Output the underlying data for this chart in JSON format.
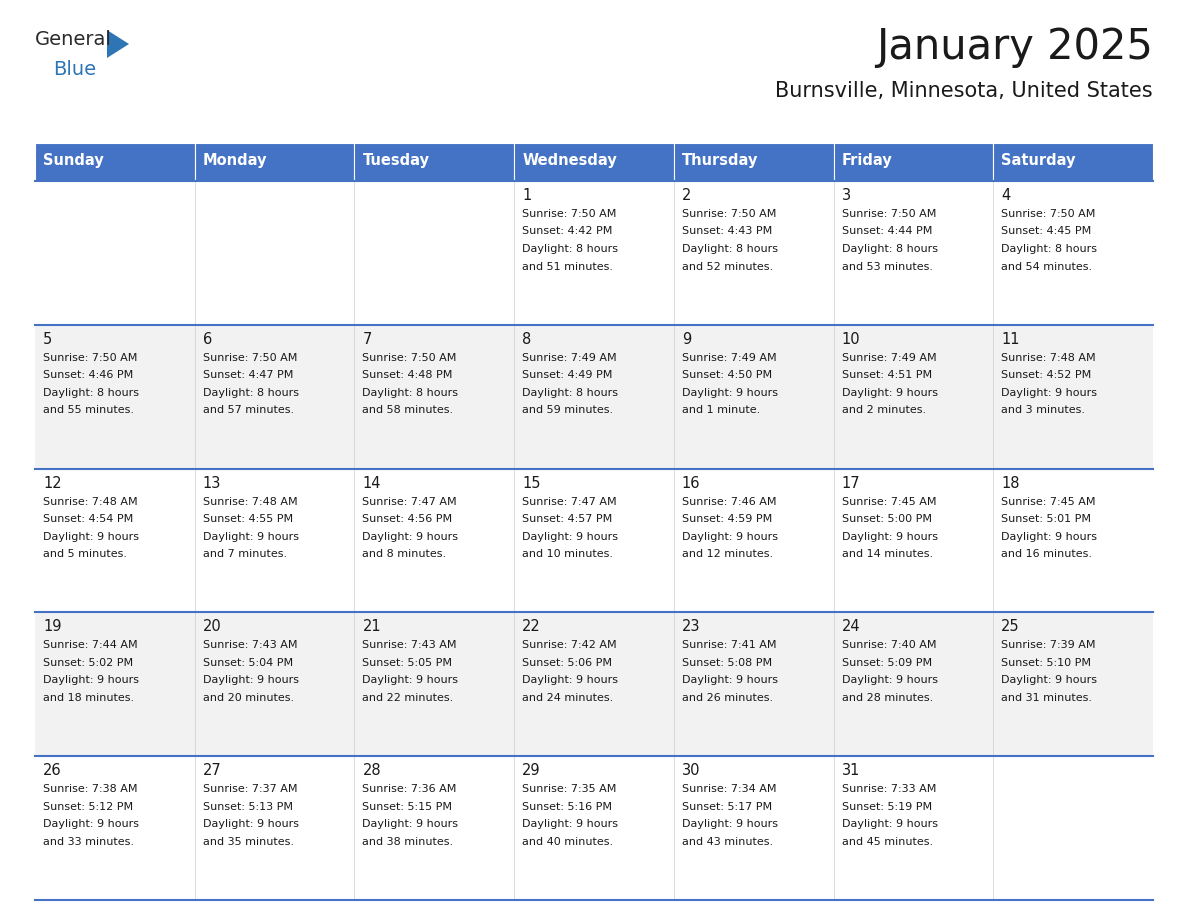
{
  "title": "January 2025",
  "subtitle": "Burnsville, Minnesota, United States",
  "header_bg": "#4472C4",
  "header_text_color": "#FFFFFF",
  "row_bg_even": "#FFFFFF",
  "row_bg_odd": "#F2F2F2",
  "border_color": "#4472C4",
  "border_color_light": "#9DC3E6",
  "day_headers": [
    "Sunday",
    "Monday",
    "Tuesday",
    "Wednesday",
    "Thursday",
    "Friday",
    "Saturday"
  ],
  "weeks": [
    [
      {
        "day": "",
        "sunrise": "",
        "sunset": "",
        "daylight": ""
      },
      {
        "day": "",
        "sunrise": "",
        "sunset": "",
        "daylight": ""
      },
      {
        "day": "",
        "sunrise": "",
        "sunset": "",
        "daylight": ""
      },
      {
        "day": "1",
        "sunrise": "Sunrise: 7:50 AM",
        "sunset": "Sunset: 4:42 PM",
        "daylight": "Daylight: 8 hours\nand 51 minutes."
      },
      {
        "day": "2",
        "sunrise": "Sunrise: 7:50 AM",
        "sunset": "Sunset: 4:43 PM",
        "daylight": "Daylight: 8 hours\nand 52 minutes."
      },
      {
        "day": "3",
        "sunrise": "Sunrise: 7:50 AM",
        "sunset": "Sunset: 4:44 PM",
        "daylight": "Daylight: 8 hours\nand 53 minutes."
      },
      {
        "day": "4",
        "sunrise": "Sunrise: 7:50 AM",
        "sunset": "Sunset: 4:45 PM",
        "daylight": "Daylight: 8 hours\nand 54 minutes."
      }
    ],
    [
      {
        "day": "5",
        "sunrise": "Sunrise: 7:50 AM",
        "sunset": "Sunset: 4:46 PM",
        "daylight": "Daylight: 8 hours\nand 55 minutes."
      },
      {
        "day": "6",
        "sunrise": "Sunrise: 7:50 AM",
        "sunset": "Sunset: 4:47 PM",
        "daylight": "Daylight: 8 hours\nand 57 minutes."
      },
      {
        "day": "7",
        "sunrise": "Sunrise: 7:50 AM",
        "sunset": "Sunset: 4:48 PM",
        "daylight": "Daylight: 8 hours\nand 58 minutes."
      },
      {
        "day": "8",
        "sunrise": "Sunrise: 7:49 AM",
        "sunset": "Sunset: 4:49 PM",
        "daylight": "Daylight: 8 hours\nand 59 minutes."
      },
      {
        "day": "9",
        "sunrise": "Sunrise: 7:49 AM",
        "sunset": "Sunset: 4:50 PM",
        "daylight": "Daylight: 9 hours\nand 1 minute."
      },
      {
        "day": "10",
        "sunrise": "Sunrise: 7:49 AM",
        "sunset": "Sunset: 4:51 PM",
        "daylight": "Daylight: 9 hours\nand 2 minutes."
      },
      {
        "day": "11",
        "sunrise": "Sunrise: 7:48 AM",
        "sunset": "Sunset: 4:52 PM",
        "daylight": "Daylight: 9 hours\nand 3 minutes."
      }
    ],
    [
      {
        "day": "12",
        "sunrise": "Sunrise: 7:48 AM",
        "sunset": "Sunset: 4:54 PM",
        "daylight": "Daylight: 9 hours\nand 5 minutes."
      },
      {
        "day": "13",
        "sunrise": "Sunrise: 7:48 AM",
        "sunset": "Sunset: 4:55 PM",
        "daylight": "Daylight: 9 hours\nand 7 minutes."
      },
      {
        "day": "14",
        "sunrise": "Sunrise: 7:47 AM",
        "sunset": "Sunset: 4:56 PM",
        "daylight": "Daylight: 9 hours\nand 8 minutes."
      },
      {
        "day": "15",
        "sunrise": "Sunrise: 7:47 AM",
        "sunset": "Sunset: 4:57 PM",
        "daylight": "Daylight: 9 hours\nand 10 minutes."
      },
      {
        "day": "16",
        "sunrise": "Sunrise: 7:46 AM",
        "sunset": "Sunset: 4:59 PM",
        "daylight": "Daylight: 9 hours\nand 12 minutes."
      },
      {
        "day": "17",
        "sunrise": "Sunrise: 7:45 AM",
        "sunset": "Sunset: 5:00 PM",
        "daylight": "Daylight: 9 hours\nand 14 minutes."
      },
      {
        "day": "18",
        "sunrise": "Sunrise: 7:45 AM",
        "sunset": "Sunset: 5:01 PM",
        "daylight": "Daylight: 9 hours\nand 16 minutes."
      }
    ],
    [
      {
        "day": "19",
        "sunrise": "Sunrise: 7:44 AM",
        "sunset": "Sunset: 5:02 PM",
        "daylight": "Daylight: 9 hours\nand 18 minutes."
      },
      {
        "day": "20",
        "sunrise": "Sunrise: 7:43 AM",
        "sunset": "Sunset: 5:04 PM",
        "daylight": "Daylight: 9 hours\nand 20 minutes."
      },
      {
        "day": "21",
        "sunrise": "Sunrise: 7:43 AM",
        "sunset": "Sunset: 5:05 PM",
        "daylight": "Daylight: 9 hours\nand 22 minutes."
      },
      {
        "day": "22",
        "sunrise": "Sunrise: 7:42 AM",
        "sunset": "Sunset: 5:06 PM",
        "daylight": "Daylight: 9 hours\nand 24 minutes."
      },
      {
        "day": "23",
        "sunrise": "Sunrise: 7:41 AM",
        "sunset": "Sunset: 5:08 PM",
        "daylight": "Daylight: 9 hours\nand 26 minutes."
      },
      {
        "day": "24",
        "sunrise": "Sunrise: 7:40 AM",
        "sunset": "Sunset: 5:09 PM",
        "daylight": "Daylight: 9 hours\nand 28 minutes."
      },
      {
        "day": "25",
        "sunrise": "Sunrise: 7:39 AM",
        "sunset": "Sunset: 5:10 PM",
        "daylight": "Daylight: 9 hours\nand 31 minutes."
      }
    ],
    [
      {
        "day": "26",
        "sunrise": "Sunrise: 7:38 AM",
        "sunset": "Sunset: 5:12 PM",
        "daylight": "Daylight: 9 hours\nand 33 minutes."
      },
      {
        "day": "27",
        "sunrise": "Sunrise: 7:37 AM",
        "sunset": "Sunset: 5:13 PM",
        "daylight": "Daylight: 9 hours\nand 35 minutes."
      },
      {
        "day": "28",
        "sunrise": "Sunrise: 7:36 AM",
        "sunset": "Sunset: 5:15 PM",
        "daylight": "Daylight: 9 hours\nand 38 minutes."
      },
      {
        "day": "29",
        "sunrise": "Sunrise: 7:35 AM",
        "sunset": "Sunset: 5:16 PM",
        "daylight": "Daylight: 9 hours\nand 40 minutes."
      },
      {
        "day": "30",
        "sunrise": "Sunrise: 7:34 AM",
        "sunset": "Sunset: 5:17 PM",
        "daylight": "Daylight: 9 hours\nand 43 minutes."
      },
      {
        "day": "31",
        "sunrise": "Sunrise: 7:33 AM",
        "sunset": "Sunset: 5:19 PM",
        "daylight": "Daylight: 9 hours\nand 45 minutes."
      },
      {
        "day": "",
        "sunrise": "",
        "sunset": "",
        "daylight": ""
      }
    ]
  ],
  "logo_general_color": "#2B2B2B",
  "logo_blue_color": "#2E75B6",
  "fig_width": 11.88,
  "fig_height": 9.18,
  "dpi": 100
}
